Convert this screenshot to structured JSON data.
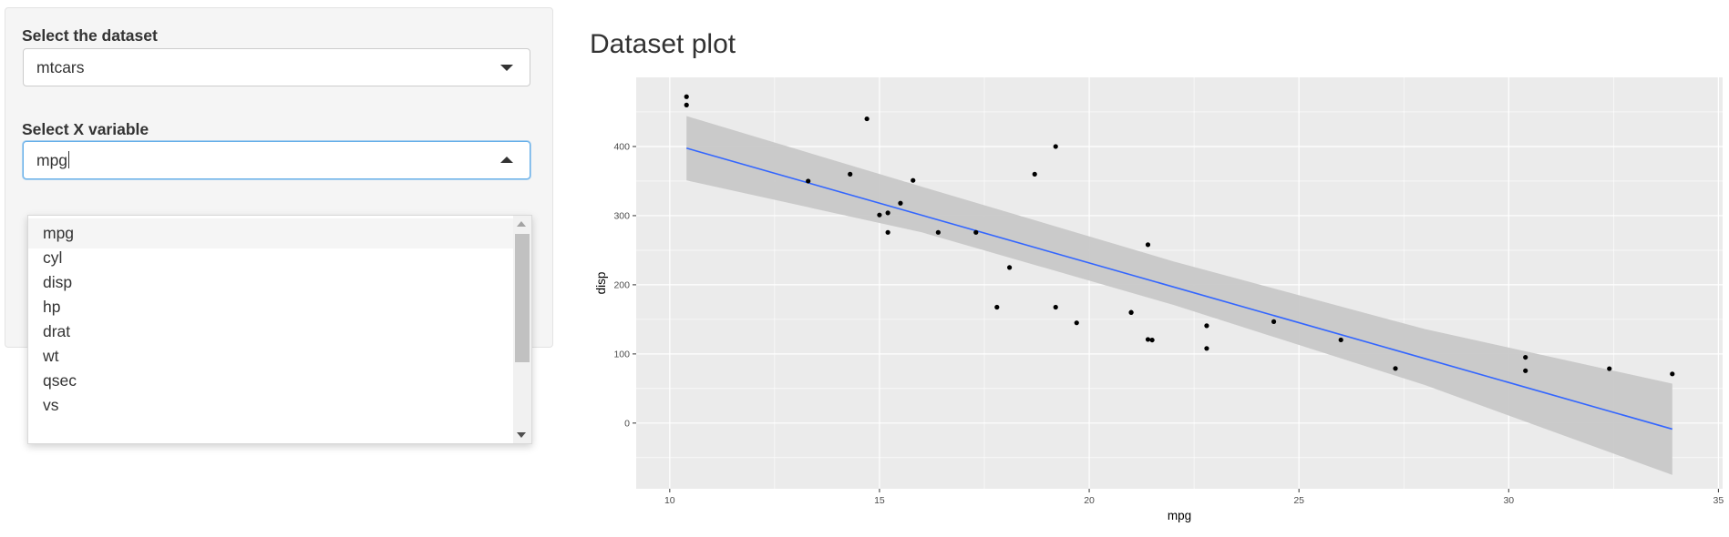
{
  "sidebar": {
    "dataset_label": "Select the dataset",
    "dataset_value": "mtcars",
    "xvar_label": "Select X variable",
    "xvar_value": "mpg",
    "xvar_options": [
      "mpg",
      "cyl",
      "disp",
      "hp",
      "drat",
      "wt",
      "qsec",
      "vs"
    ]
  },
  "main": {
    "plot_title": "Dataset plot"
  },
  "chart_data": {
    "type": "scatter",
    "title": "Dataset plot",
    "xlabel": "mpg",
    "ylabel": "disp",
    "xlim": [
      9.2,
      35.1
    ],
    "ylim": [
      -95,
      500
    ],
    "xticks": [
      10,
      15,
      20,
      25,
      30,
      35
    ],
    "yticks": [
      0,
      100,
      200,
      300,
      400
    ],
    "grid": true,
    "points": [
      [
        21,
        160
      ],
      [
        21,
        160
      ],
      [
        22.8,
        108
      ],
      [
        21.4,
        258
      ],
      [
        18.7,
        360
      ],
      [
        18.1,
        225
      ],
      [
        14.3,
        360
      ],
      [
        24.4,
        146.7
      ],
      [
        22.8,
        140.8
      ],
      [
        19.2,
        167.6
      ],
      [
        17.8,
        167.6
      ],
      [
        16.4,
        275.8
      ],
      [
        17.3,
        275.8
      ],
      [
        15.2,
        275.8
      ],
      [
        10.4,
        472
      ],
      [
        10.4,
        460
      ],
      [
        14.7,
        440
      ],
      [
        32.4,
        78.7
      ],
      [
        30.4,
        75.7
      ],
      [
        33.9,
        71.1
      ],
      [
        21.5,
        120.1
      ],
      [
        15.5,
        318
      ],
      [
        15.2,
        304
      ],
      [
        13.3,
        350
      ],
      [
        19.2,
        400
      ],
      [
        27.3,
        79
      ],
      [
        26,
        120.3
      ],
      [
        30.4,
        95.1
      ],
      [
        15.8,
        351
      ],
      [
        19.7,
        145
      ],
      [
        15,
        301
      ],
      [
        21.4,
        121
      ]
    ],
    "fit_line": {
      "x": [
        10.4,
        33.9
      ],
      "y": [
        397.6,
        -8.7
      ]
    },
    "confidence_band": {
      "x": [
        10.4,
        16,
        22,
        28,
        33.9
      ],
      "lower": [
        351,
        276,
        171,
        55,
        -75
      ],
      "upper": [
        444,
        342,
        234,
        136,
        57
      ]
    },
    "colors": {
      "line": "#3366FF",
      "band": "#C8C8C8",
      "panel": "#EBEBEB",
      "point": "#000000"
    }
  }
}
